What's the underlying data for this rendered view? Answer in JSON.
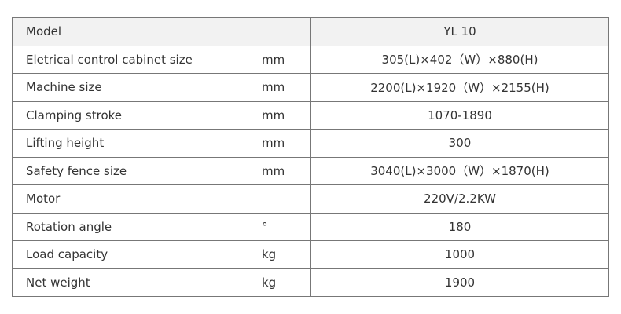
{
  "header": {
    "label": "Model",
    "unit": "",
    "value": "YL 10"
  },
  "rows": [
    {
      "label": "Eletrical control cabinet size",
      "unit": "mm",
      "value": "305(L)×402（W）×880(H)"
    },
    {
      "label": "Machine size",
      "unit": "mm",
      "value": "2200(L)×1920（W）×2155(H)"
    },
    {
      "label": "Clamping stroke",
      "unit": "mm",
      "value": "1070-1890"
    },
    {
      "label": "Lifting height",
      "unit": "mm",
      "value": "300"
    },
    {
      "label": "Safety  fence size",
      "unit": "mm",
      "value": "3040(L)×3000（W）×1870(H)"
    },
    {
      "label": "Motor",
      "unit": "",
      "value": "220V/2.2KW"
    },
    {
      "label": "Rotation angle",
      "unit": "°",
      "value": "180"
    },
    {
      "label": "Load capacity",
      "unit": "kg",
      "value": "1000"
    },
    {
      "label": "Net weight",
      "unit": "kg",
      "value": "1900"
    }
  ]
}
